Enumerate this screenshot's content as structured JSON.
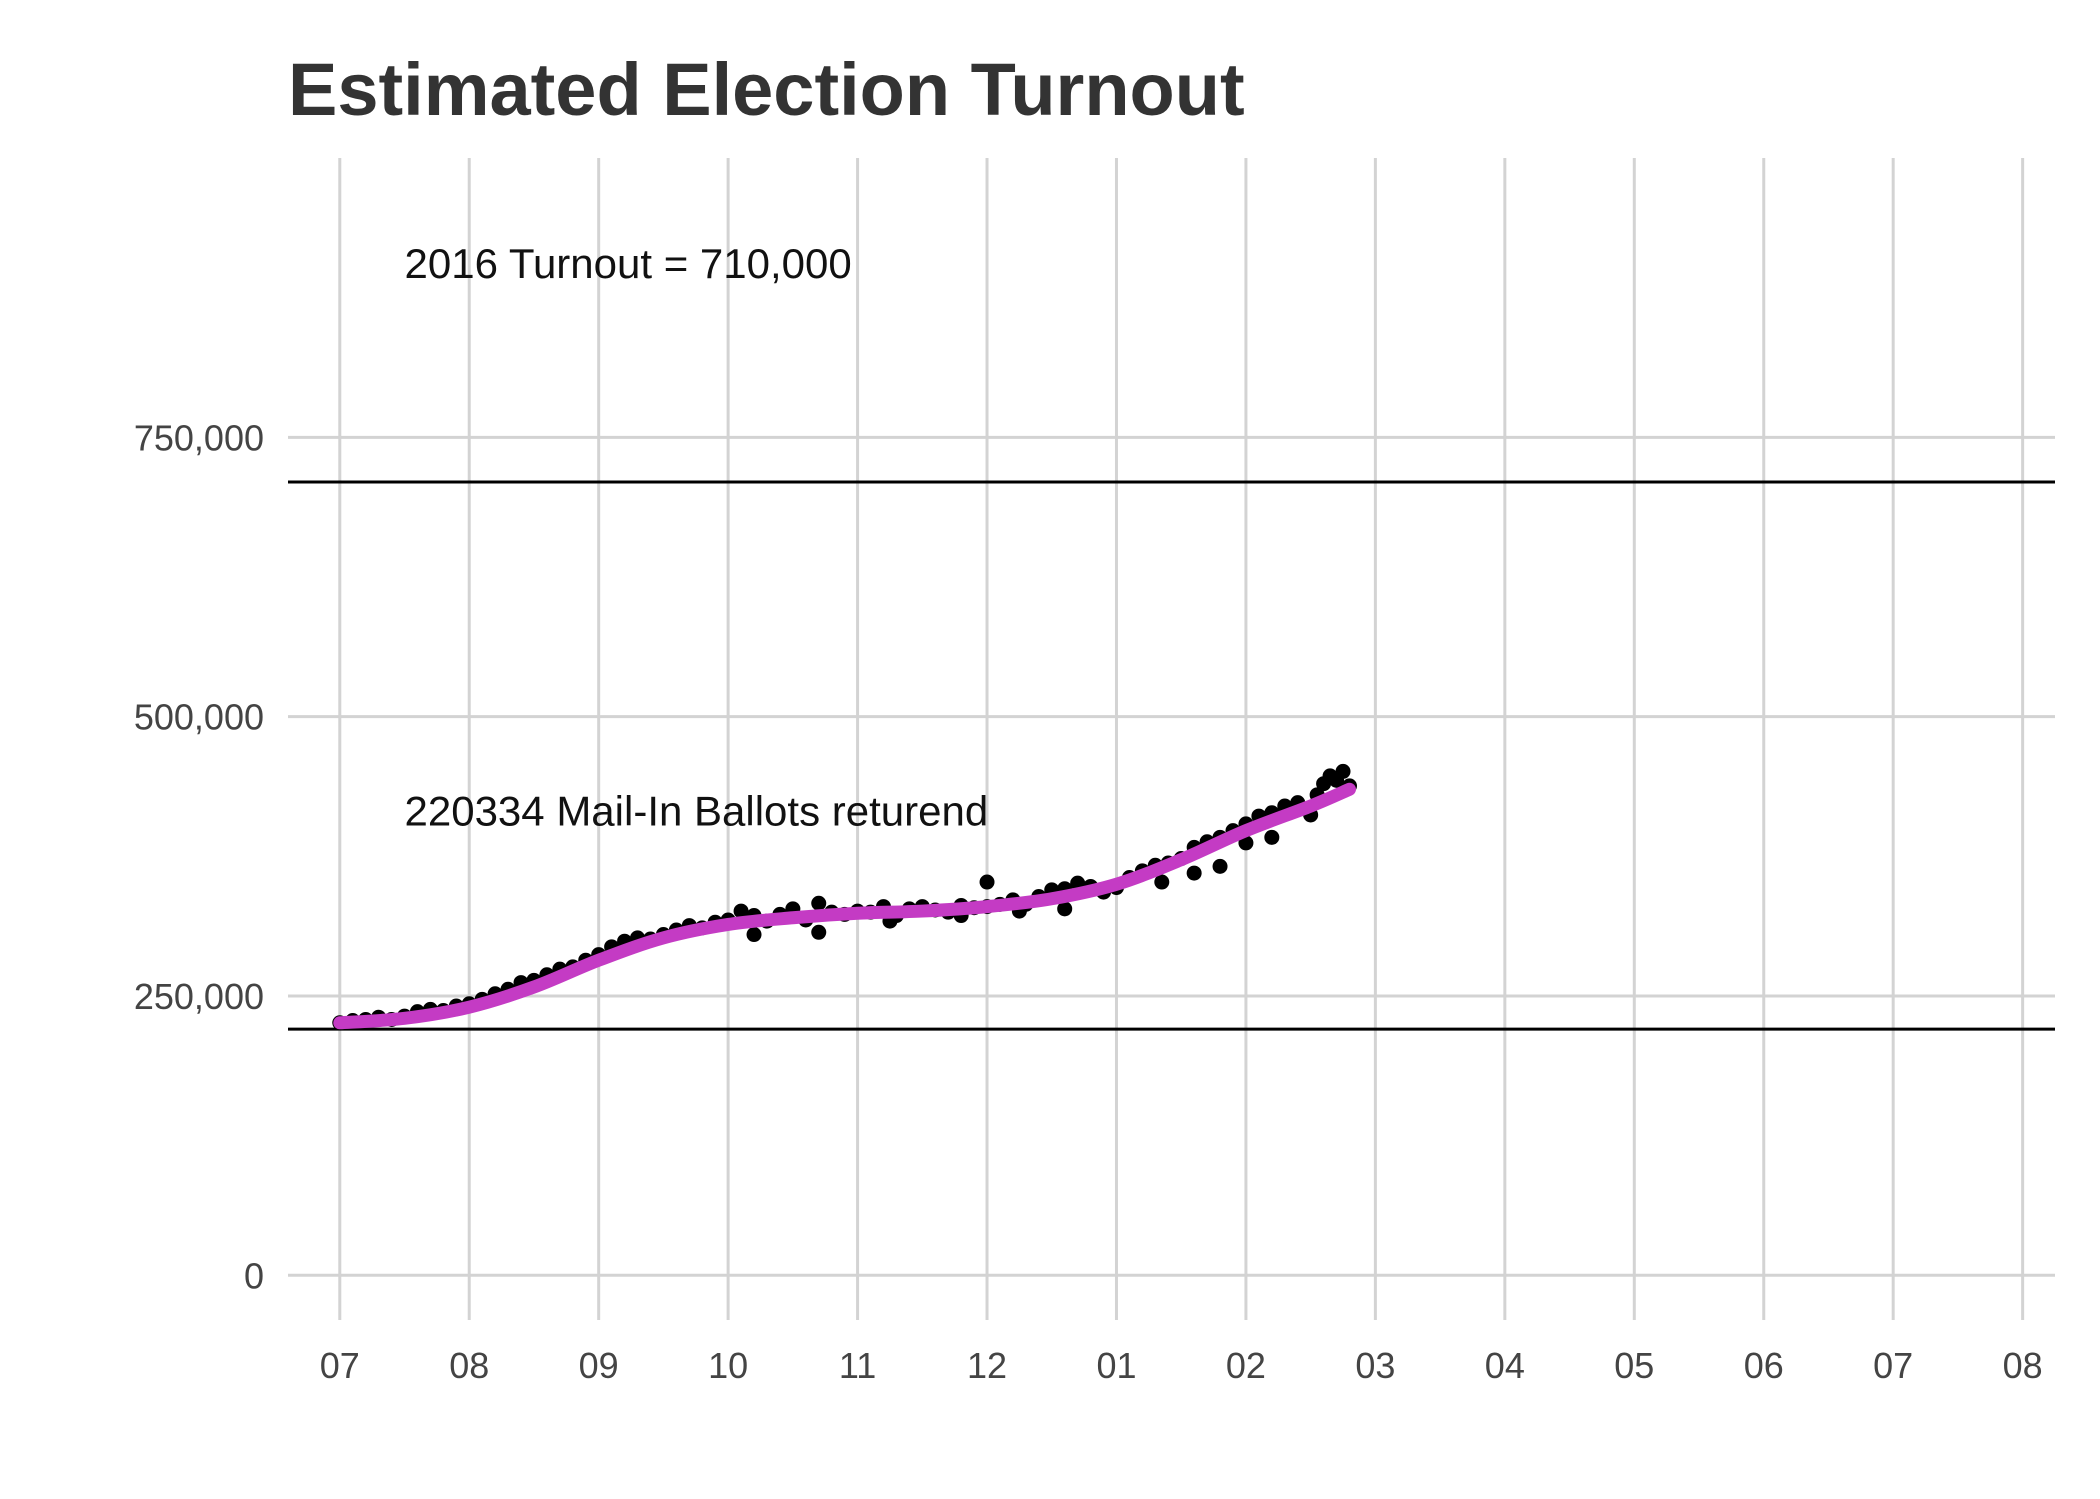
{
  "chart_data": {
    "type": "scatter",
    "title": "Estimated Election Turnout",
    "xlabel": "",
    "ylabel": "",
    "x_axis": {
      "type": "month",
      "start": "2019-07",
      "end": "2020-08",
      "tick_labels": [
        "07",
        "08",
        "09",
        "10",
        "11",
        "12",
        "01",
        "02",
        "03",
        "04",
        "05",
        "06",
        "07",
        "08"
      ]
    },
    "y_axis": {
      "ylim": [
        -40000,
        1000000
      ],
      "ticks": [
        0,
        250000,
        500000,
        750000
      ],
      "tick_labels": [
        "0",
        "250,000",
        "500,000",
        "750,000"
      ]
    },
    "grid": true,
    "legend": "none",
    "reference_lines": [
      {
        "y": 710000,
        "color": "#000000"
      },
      {
        "y": 220334,
        "color": "#000000"
      }
    ],
    "annotations": [
      {
        "text": "2016 Turnout = 710,000",
        "x": 7.5,
        "y": 905000
      },
      {
        "text": "220334 Mail-In Ballots returend",
        "x": 7.5,
        "y": 415000
      }
    ],
    "series": [
      {
        "kind": "points",
        "color": "#000000",
        "x": [
          7.0,
          7.1,
          7.2,
          7.3,
          7.4,
          7.5,
          7.6,
          7.7,
          7.8,
          7.9,
          8.0,
          8.1,
          8.2,
          8.3,
          8.4,
          8.5,
          8.6,
          8.7,
          8.8,
          8.9,
          9.0,
          9.1,
          9.2,
          9.3,
          9.4,
          9.5,
          9.6,
          9.7,
          9.8,
          9.9,
          10.0,
          10.1,
          10.2,
          10.3,
          10.4,
          10.5,
          10.6,
          10.7,
          10.8,
          10.9,
          11.0,
          11.1,
          11.2,
          11.3,
          11.4,
          11.5,
          11.6,
          11.7,
          11.8,
          11.9,
          12.0,
          12.1,
          12.2,
          12.3,
          12.4,
          12.5,
          12.6,
          12.7,
          12.8,
          12.9,
          13.0,
          13.1,
          13.2,
          13.3,
          13.4,
          13.5,
          13.6,
          13.7,
          13.8,
          13.9,
          14.0,
          14.1,
          14.2,
          14.3,
          14.4,
          14.5,
          14.55,
          14.6,
          14.65,
          14.7,
          14.75,
          14.8,
          14.2,
          14.0,
          13.8,
          13.6,
          13.35,
          12.0,
          12.25,
          10.2,
          10.7,
          11.25,
          11.8,
          12.6
        ],
        "y": [
          226000,
          228000,
          229000,
          231000,
          229000,
          232000,
          236000,
          238000,
          237000,
          241000,
          243000,
          247000,
          252000,
          256000,
          262000,
          264000,
          269000,
          274000,
          276000,
          282000,
          287000,
          294000,
          299000,
          302000,
          301000,
          305000,
          309000,
          313000,
          311000,
          316000,
          318000,
          326000,
          322000,
          317000,
          323000,
          328000,
          318000,
          333000,
          325000,
          323000,
          326000,
          325000,
          330000,
          322000,
          328000,
          330000,
          327000,
          325000,
          331000,
          329000,
          330000,
          332000,
          336000,
          332000,
          339000,
          345000,
          346000,
          351000,
          348000,
          343000,
          347000,
          356000,
          362000,
          367000,
          369000,
          373000,
          383000,
          388000,
          392000,
          398000,
          404000,
          411000,
          414000,
          420000,
          423000,
          412000,
          430000,
          440000,
          447000,
          443000,
          451000,
          438000,
          392000,
          387000,
          366000,
          360000,
          352000,
          352000,
          326000,
          305000,
          307000,
          317000,
          322000,
          328000
        ]
      },
      {
        "kind": "smooth",
        "color": "#c43bc4",
        "x": [
          7.0,
          7.5,
          8.0,
          8.5,
          9.0,
          9.5,
          10.0,
          10.5,
          11.0,
          11.5,
          12.0,
          12.5,
          13.0,
          13.5,
          14.0,
          14.5,
          14.8
        ],
        "y": [
          226000,
          230000,
          240000,
          258000,
          282000,
          302000,
          314000,
          320000,
          324000,
          326000,
          330000,
          337000,
          350000,
          372000,
          398000,
          420000,
          435000
        ]
      }
    ]
  }
}
